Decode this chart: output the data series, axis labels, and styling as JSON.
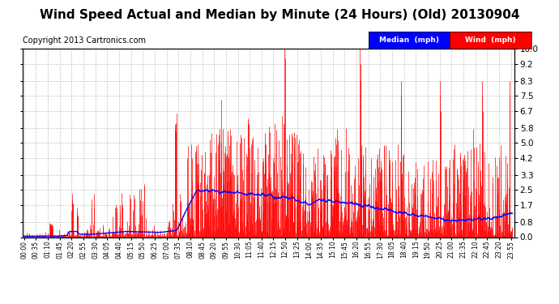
{
  "title": "Wind Speed Actual and Median by Minute (24 Hours) (Old) 20130904",
  "copyright": "Copyright 2013 Cartronics.com",
  "yticks": [
    0.0,
    0.8,
    1.7,
    2.5,
    3.3,
    4.2,
    5.0,
    5.8,
    6.7,
    7.5,
    8.3,
    9.2,
    10.0
  ],
  "ylim": [
    0.0,
    10.0
  ],
  "wind_color": "#FF0000",
  "median_color": "#0000FF",
  "background_color": "#FFFFFF",
  "grid_color": "#AAAAAA",
  "title_fontsize": 11,
  "copyright_fontsize": 7,
  "legend_wind_label": "Wind  (mph)",
  "legend_median_label": "Median  (mph)",
  "legend_wind_bg": "#FF0000",
  "legend_median_bg": "#0000FF"
}
